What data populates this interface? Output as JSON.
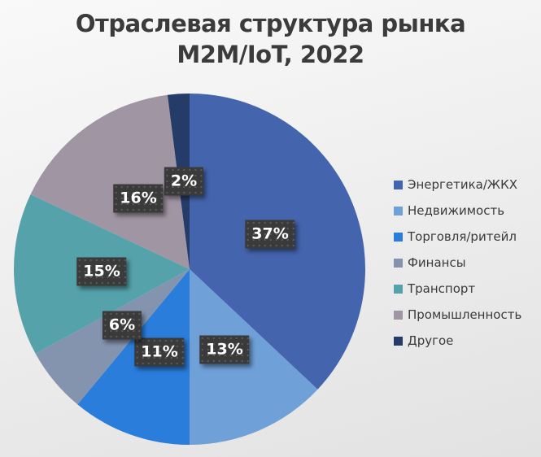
{
  "title": {
    "line1": "Отраслевая структура рынка",
    "line2": "M2M/IoT, 2022"
  },
  "chart_data": {
    "type": "pie",
    "title": "Отраслевая структура рынка M2M/IoT, 2022",
    "start_angle_deg": 0,
    "direction": "clockwise",
    "legend_position": "right",
    "data_labels": "percent-inside-boxes",
    "label_box_color": "#3a3a3a",
    "label_text_color": "#ffffff",
    "segments": [
      {
        "label": "Энергетика/ЖКХ",
        "value_pct": 37,
        "data_label": "37%",
        "color": "#4465ad"
      },
      {
        "label": "Недвижимость",
        "value_pct": 13,
        "data_label": "13%",
        "color": "#6fa0d8"
      },
      {
        "label": "Торговля/ритейл",
        "value_pct": 11,
        "data_label": "11%",
        "color": "#2a7ddb"
      },
      {
        "label": "Финансы",
        "value_pct": 6,
        "data_label": "6%",
        "color": "#8494ae"
      },
      {
        "label": "Транспорт",
        "value_pct": 15,
        "data_label": "15%",
        "color": "#56a2ab"
      },
      {
        "label": "Промышленность",
        "value_pct": 16,
        "data_label": "16%",
        "color": "#a095a3"
      },
      {
        "label": "Другое",
        "value_pct": 2,
        "data_label": "2%",
        "color": "#263c68"
      }
    ]
  }
}
